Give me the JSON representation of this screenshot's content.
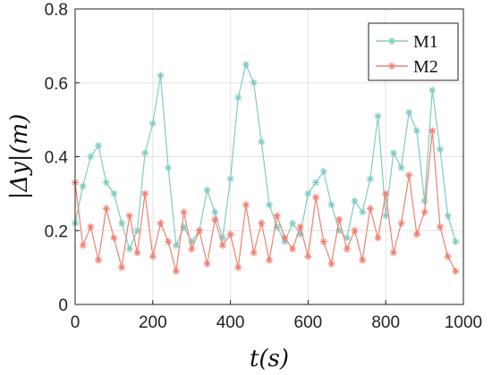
{
  "chart_data": {
    "type": "line",
    "xlabel": "t(s)",
    "ylabel": "|Δy|(m)",
    "xlim": [
      0,
      1000
    ],
    "ylim": [
      0,
      0.8
    ],
    "x_ticks": [
      "0",
      "200",
      "400",
      "600",
      "800",
      "1000"
    ],
    "y_ticks": [
      "0",
      "0.2",
      "0.4",
      "0.6",
      "0.8"
    ],
    "grid": true,
    "legend": "top-right",
    "marker": "asterisk",
    "series": [
      {
        "name": "M1",
        "color": "#7fcbc4",
        "x": [
          0,
          20,
          40,
          60,
          80,
          100,
          120,
          140,
          160,
          180,
          200,
          220,
          240,
          260,
          280,
          300,
          320,
          340,
          360,
          380,
          400,
          420,
          440,
          460,
          480,
          500,
          520,
          540,
          560,
          580,
          600,
          620,
          640,
          660,
          680,
          700,
          720,
          740,
          760,
          780,
          800,
          820,
          840,
          860,
          880,
          900,
          920,
          940,
          960,
          980
        ],
        "values": [
          0.22,
          0.32,
          0.4,
          0.43,
          0.33,
          0.3,
          0.22,
          0.15,
          0.2,
          0.41,
          0.49,
          0.62,
          0.37,
          0.16,
          0.21,
          0.17,
          0.2,
          0.31,
          0.25,
          0.18,
          0.34,
          0.56,
          0.65,
          0.6,
          0.44,
          0.27,
          0.21,
          0.17,
          0.22,
          0.19,
          0.3,
          0.33,
          0.36,
          0.27,
          0.2,
          0.18,
          0.28,
          0.25,
          0.34,
          0.51,
          0.24,
          0.41,
          0.37,
          0.52,
          0.47,
          0.28,
          0.58,
          0.42,
          0.24,
          0.17
        ]
      },
      {
        "name": "M2",
        "color": "#f08070",
        "x": [
          0,
          20,
          40,
          60,
          80,
          100,
          120,
          140,
          160,
          180,
          200,
          220,
          240,
          260,
          280,
          300,
          320,
          340,
          360,
          380,
          400,
          420,
          440,
          460,
          480,
          500,
          520,
          540,
          560,
          580,
          600,
          620,
          640,
          660,
          680,
          700,
          720,
          740,
          760,
          780,
          800,
          820,
          840,
          860,
          880,
          900,
          920,
          940,
          960,
          980
        ],
        "values": [
          0.33,
          0.16,
          0.21,
          0.12,
          0.26,
          0.18,
          0.1,
          0.24,
          0.14,
          0.3,
          0.13,
          0.22,
          0.17,
          0.09,
          0.25,
          0.15,
          0.2,
          0.11,
          0.23,
          0.16,
          0.19,
          0.1,
          0.27,
          0.14,
          0.22,
          0.12,
          0.24,
          0.18,
          0.15,
          0.21,
          0.13,
          0.29,
          0.17,
          0.11,
          0.23,
          0.15,
          0.2,
          0.12,
          0.26,
          0.18,
          0.3,
          0.14,
          0.22,
          0.35,
          0.19,
          0.25,
          0.47,
          0.21,
          0.13,
          0.09
        ]
      }
    ]
  }
}
